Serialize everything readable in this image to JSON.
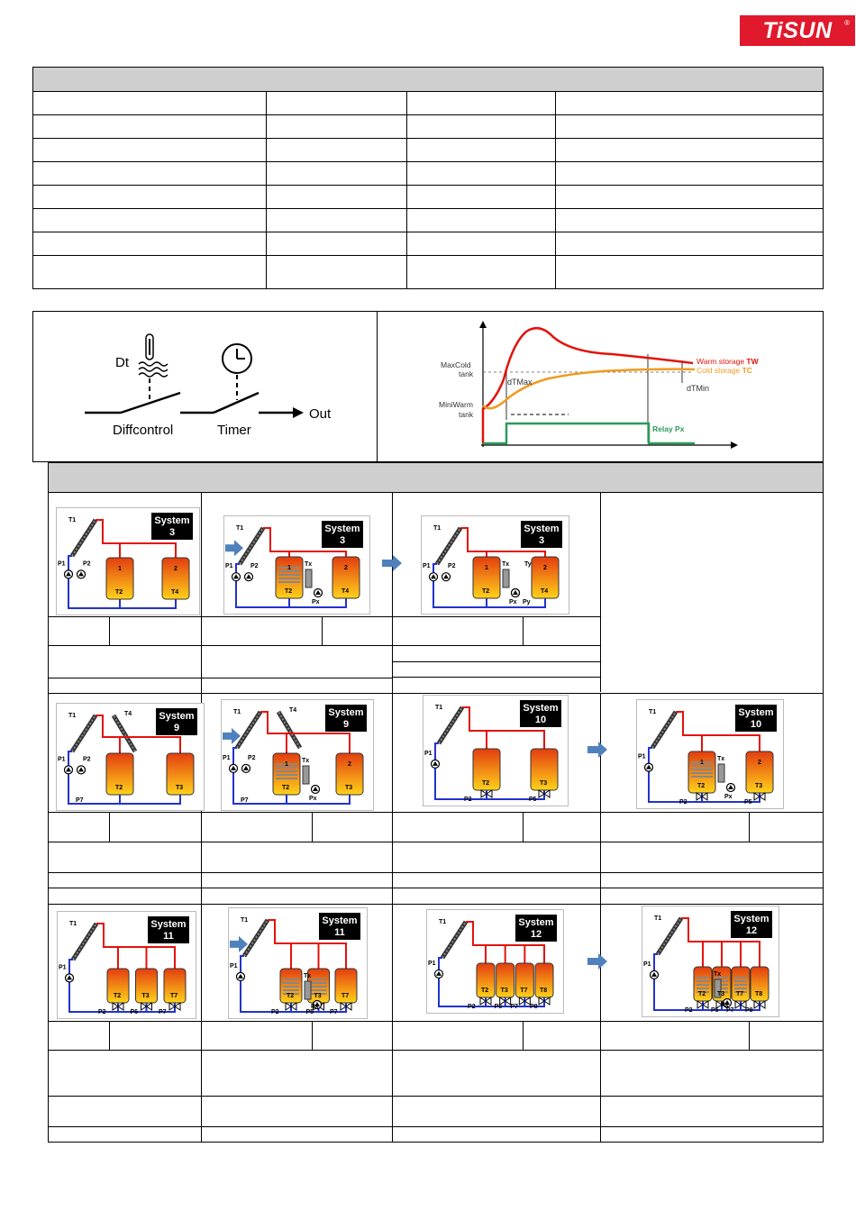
{
  "logo": {
    "text": "TiSUN",
    "reg": "®"
  },
  "logic_diagram": {
    "dt_label": "Dt",
    "diffcontrol_label": "Diffcontrol",
    "timer_label": "Timer",
    "out_label": "Out"
  },
  "curve_chart": {
    "maxcold_label_1": "MaxCold",
    "maxcold_label_2": "tank",
    "miniwarm_label_1": "MiniWarm",
    "miniwarm_label_2": "tank",
    "dtmax_label": "dTMax",
    "dtmin_label": "dTMin",
    "warm_label": "Warm storage ",
    "warm_tag": "TW",
    "cold_label": "Cold storage ",
    "cold_tag": "TC",
    "relay_label": "Relay Px",
    "colors": {
      "warm": "#e3120b",
      "cold": "#f29a1f",
      "relay": "#2e9a5a"
    }
  },
  "systems": [
    {
      "title": "System",
      "num": "3",
      "labels": [
        "T1",
        "P1",
        "P2",
        "1",
        "2",
        "T2",
        "T4"
      ]
    },
    {
      "title": "System",
      "num": "3",
      "labels": [
        "T1",
        "P1",
        "P2",
        "1",
        "2",
        "T2",
        "T4",
        "Tx",
        "Px"
      ]
    },
    {
      "title": "System",
      "num": "3",
      "labels": [
        "T1",
        "P1",
        "P2",
        "1",
        "2",
        "T2",
        "T4",
        "Tx",
        "Px",
        "Ty",
        "Py"
      ]
    },
    {
      "title": "System",
      "num": "9",
      "labels": [
        "T1",
        "T4",
        "P1",
        "P2",
        "P7",
        "T2",
        "T3"
      ]
    },
    {
      "title": "System",
      "num": "9",
      "labels": [
        "T1",
        "T4",
        "P1",
        "P2",
        "P7",
        "1",
        "2",
        "T2",
        "T3",
        "Tx",
        "Px"
      ]
    },
    {
      "title": "System",
      "num": "10",
      "labels": [
        "T1",
        "P1",
        "P2",
        "P5",
        "T2",
        "T3"
      ]
    },
    {
      "title": "System",
      "num": "10",
      "labels": [
        "T1",
        "P1",
        "P2",
        "P5",
        "1",
        "2",
        "T2",
        "T3",
        "Tx",
        "Px"
      ]
    },
    {
      "title": "System",
      "num": "11",
      "labels": [
        "T1",
        "P1",
        "P2",
        "P6",
        "P7",
        "T2",
        "T3",
        "T7"
      ]
    },
    {
      "title": "System",
      "num": "11",
      "labels": [
        "T1",
        "P1",
        "P2",
        "P5",
        "P7",
        "T2",
        "T3",
        "T7",
        "Tx",
        "Px"
      ]
    },
    {
      "title": "System",
      "num": "12",
      "labels": [
        "T1",
        "P1",
        "P2",
        "P5",
        "P7",
        "P8",
        "T2",
        "T3",
        "T7",
        "T8"
      ]
    },
    {
      "title": "System",
      "num": "12",
      "labels": [
        "T1",
        "P1",
        "P2",
        "P5",
        "P7",
        "P8",
        "T2",
        "T3",
        "T7",
        "T8",
        "Tx",
        "Px"
      ]
    }
  ]
}
